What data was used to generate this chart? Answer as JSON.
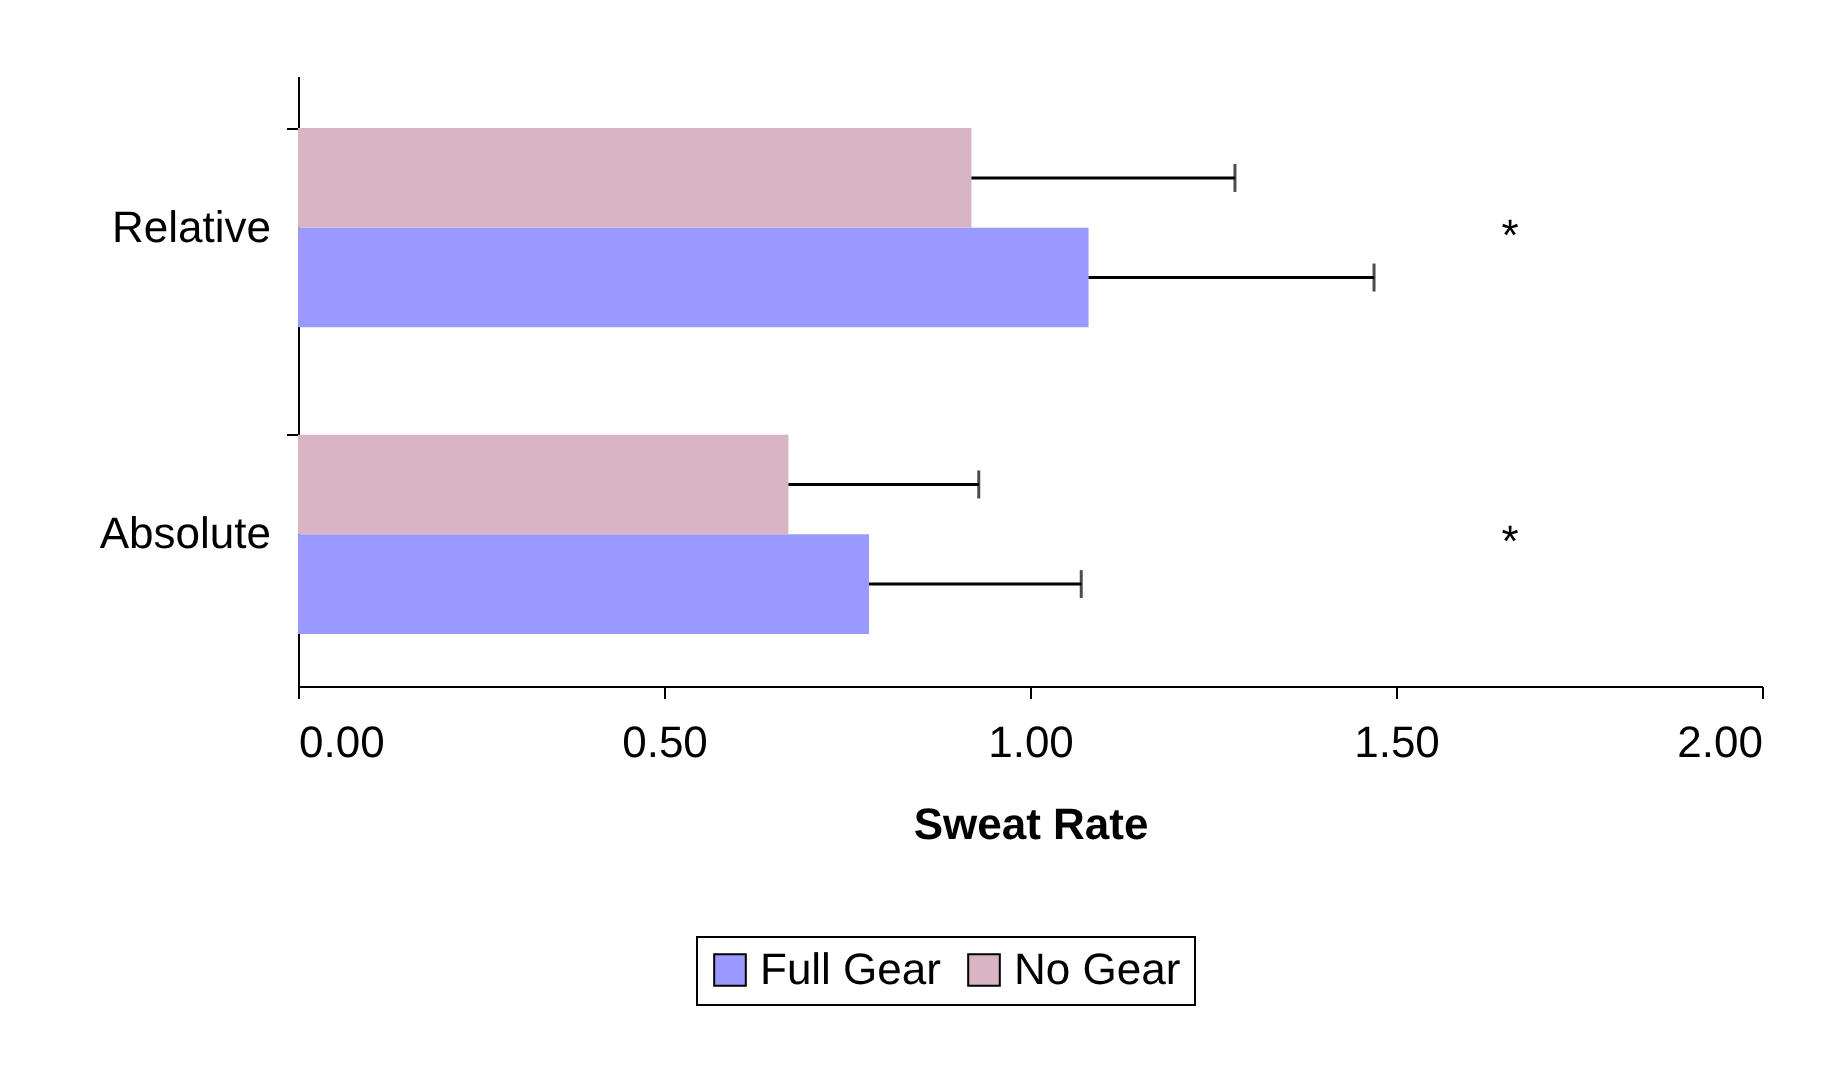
{
  "chart_data": {
    "type": "bar",
    "orientation": "horizontal",
    "xlabel": "Sweat Rate",
    "categories": [
      "Relative",
      "Absolute"
    ],
    "series": [
      {
        "name": "Full Gear",
        "color": "#9999ff",
        "values": [
          1.08,
          0.78
        ],
        "errors": [
          [
            1.08,
            1.47
          ],
          [
            0.78,
            1.07
          ]
        ]
      },
      {
        "name": "No Gear",
        "color": "#d8b4c4",
        "values": [
          0.92,
          0.67
        ],
        "errors": [
          [
            0.92,
            1.28
          ],
          [
            0.67,
            0.93
          ]
        ]
      }
    ],
    "xlim": [
      0,
      2
    ],
    "xticks": [
      {
        "value": 0,
        "label": "0.00"
      },
      {
        "value": 0.5,
        "label": "0.50"
      },
      {
        "value": 1,
        "label": "1.00"
      },
      {
        "value": 1.5,
        "label": "1.50"
      },
      {
        "value": 2,
        "label": "2.00"
      }
    ],
    "grid": false,
    "legend": "bottom",
    "annotations": [
      "*",
      "*"
    ]
  }
}
